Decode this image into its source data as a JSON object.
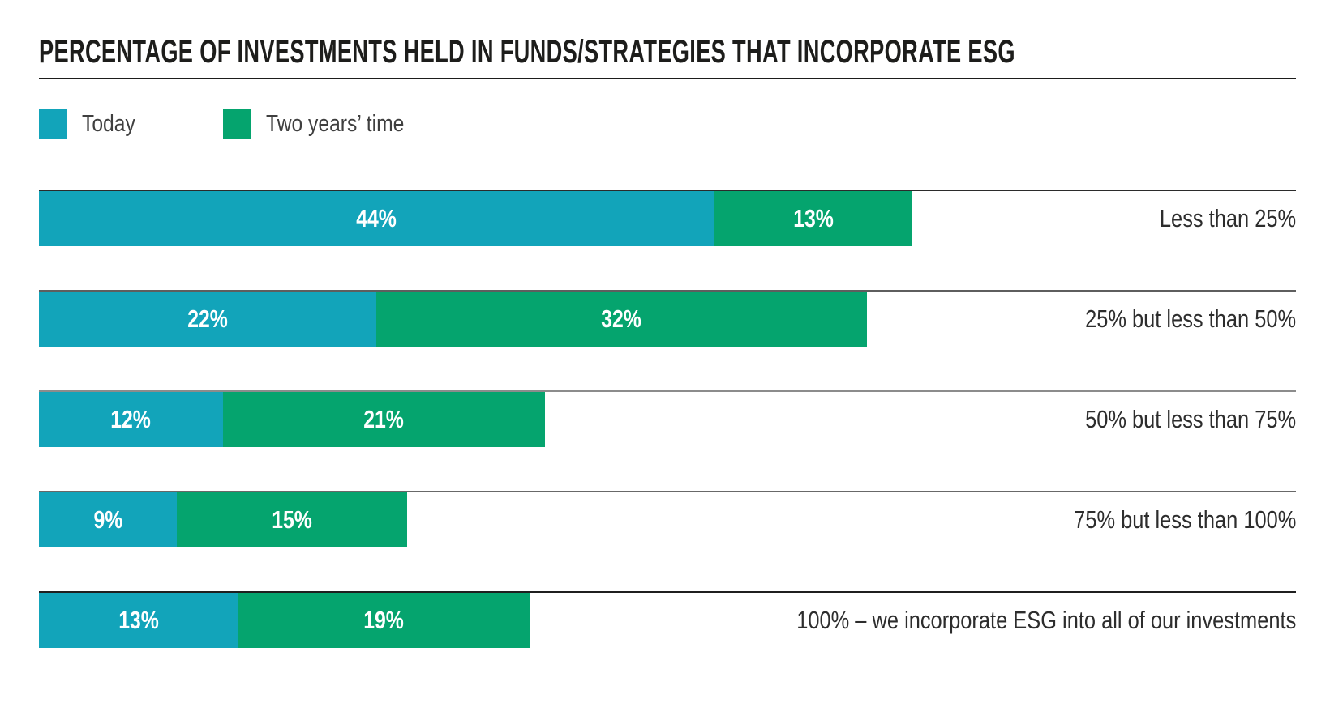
{
  "header": {
    "title": "PERCENTAGE OF INVESTMENTS HELD IN FUNDS/STRATEGIES THAT INCORPORATE ESG",
    "rule_color": "#1d1d1b"
  },
  "legend": {
    "items": [
      {
        "label": "Today",
        "color": "#12a4ba"
      },
      {
        "label": "Two years’ time",
        "color": "#05a46e"
      }
    ]
  },
  "chart_data": {
    "type": "bar",
    "orientation": "horizontal",
    "stacked": true,
    "title": "PERCENTAGE OF INVESTMENTS HELD IN FUNDS/STRATEGIES THAT INCORPORATE ESG",
    "categories": [
      "Less than 25%",
      "25% but less than 50%",
      "50% but less than 75%",
      "75% but less than 100%",
      "100% – we incorporate ESG into all of our investments"
    ],
    "series": [
      {
        "name": "Today",
        "color": "#12a4ba",
        "values": [
          44,
          22,
          12,
          9,
          13
        ]
      },
      {
        "name": "Two years’ time",
        "color": "#05a46e",
        "values": [
          13,
          32,
          21,
          15,
          19
        ]
      }
    ],
    "value_unit": "%",
    "xlim": [
      0,
      82
    ],
    "grid": false,
    "legend_position": "top-left",
    "bar_label_color": "#ffffff",
    "category_label_color": "#2d2d2d",
    "row_line_colors": [
      "#2b2b2b",
      "#5e5e5e",
      "#8c8c8c",
      "#686868",
      "#1f1f1f"
    ]
  }
}
